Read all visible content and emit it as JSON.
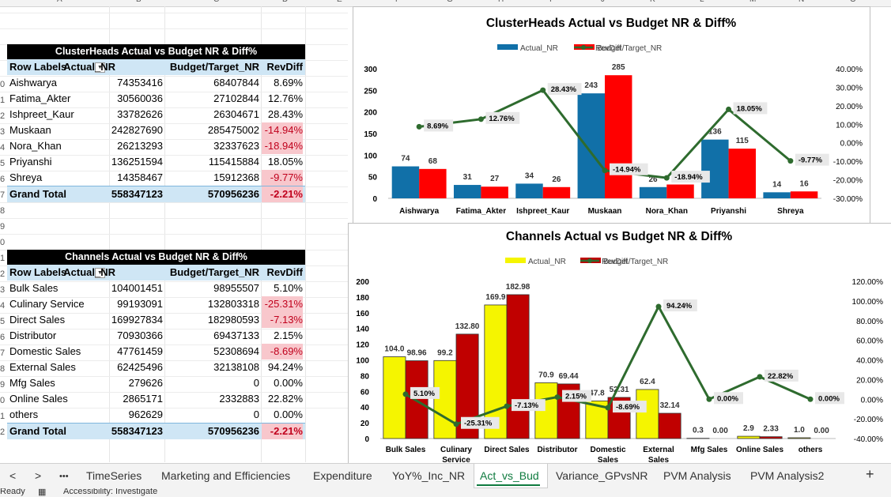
{
  "columns": [
    "A",
    "B",
    "C",
    "D",
    "E",
    "F",
    "G",
    "H",
    "I",
    "J",
    "K",
    "L",
    "M",
    "N",
    "O"
  ],
  "row_numbers": [
    "0",
    "1",
    "2",
    "3",
    "4",
    "5",
    "6",
    "7",
    "8",
    "9",
    "0",
    "1",
    "2",
    "3",
    "4",
    "5",
    "6",
    "7",
    "8",
    "9",
    "0",
    "1",
    "2"
  ],
  "table1": {
    "title": "ClusterHeads Actual vs Budget NR & Diff%",
    "headers": [
      "Row Labels",
      "Actual_NR",
      "Budget/Target_NR",
      "RevDiff"
    ],
    "rows": [
      {
        "label": "Aishwarya",
        "actual": "74353416",
        "budget": "68407844",
        "diff": "8.69%",
        "neg": false
      },
      {
        "label": "Fatima_Akter",
        "actual": "30560036",
        "budget": "27102844",
        "diff": "12.76%",
        "neg": false
      },
      {
        "label": "Ishpreet_Kaur",
        "actual": "33782626",
        "budget": "26304671",
        "diff": "28.43%",
        "neg": false
      },
      {
        "label": "Muskaan",
        "actual": "242827690",
        "budget": "285475002",
        "diff": "-14.94%",
        "neg": true
      },
      {
        "label": "Nora_Khan",
        "actual": "26213293",
        "budget": "32337623",
        "diff": "-18.94%",
        "neg": true
      },
      {
        "label": "Priyanshi",
        "actual": "136251594",
        "budget": "115415884",
        "diff": "18.05%",
        "neg": false
      },
      {
        "label": "Shreya",
        "actual": "14358467",
        "budget": "15912368",
        "diff": "-9.77%",
        "neg": true
      }
    ],
    "total": {
      "label": "Grand Total",
      "actual": "558347123",
      "budget": "570956236",
      "diff": "-2.21%"
    }
  },
  "table2": {
    "title": "Channels Actual vs Budget NR & Diff%",
    "headers": [
      "Row Labels",
      "Actual_NR",
      "Budget/Target_NR",
      "RevDiff"
    ],
    "rows": [
      {
        "label": "Bulk Sales",
        "actual": "104001451",
        "budget": "98955507",
        "diff": "5.10%",
        "neg": false
      },
      {
        "label": "Culinary Service",
        "actual": "99193091",
        "budget": "132803318",
        "diff": "-25.31%",
        "neg": true
      },
      {
        "label": "Direct Sales",
        "actual": "169927834",
        "budget": "182980593",
        "diff": "-7.13%",
        "neg": true
      },
      {
        "label": "Distributor",
        "actual": "70930366",
        "budget": "69437133",
        "diff": "2.15%",
        "neg": false
      },
      {
        "label": "Domestic Sales",
        "actual": "47761459",
        "budget": "52308694",
        "diff": "-8.69%",
        "neg": true
      },
      {
        "label": "External Sales",
        "actual": "62425496",
        "budget": "32138108",
        "diff": "94.24%",
        "neg": false
      },
      {
        "label": "Mfg Sales",
        "actual": "279626",
        "budget": "0",
        "diff": "0.00%",
        "neg": false
      },
      {
        "label": "Online Sales",
        "actual": "2865171",
        "budget": "2332883",
        "diff": "22.82%",
        "neg": false
      },
      {
        "label": "others",
        "actual": "962629",
        "budget": "0",
        "diff": "0.00%",
        "neg": false
      }
    ],
    "total": {
      "label": "Grand Total",
      "actual": "558347123",
      "budget": "570956236",
      "diff": "-2.21%"
    }
  },
  "chart_data": [
    {
      "type": "bar",
      "title": "ClusterHeads Actual vs Budget NR & Diff%",
      "categories": [
        "Aishwarya",
        "Fatima_Akter",
        "Ishpreet_Kaur",
        "Muskaan",
        "Nora_Khan",
        "Priyanshi",
        "Shreya"
      ],
      "series": [
        {
          "name": "Actual_NR",
          "values": [
            74,
            31,
            34,
            243,
            26,
            136,
            14
          ],
          "labels": [
            "74",
            "31",
            "34",
            "243",
            "26",
            "136",
            "14"
          ],
          "color": "#1170a8"
        },
        {
          "name": "Budget/Target_NR",
          "values": [
            68,
            27,
            26,
            285,
            32,
            115,
            16
          ],
          "labels": [
            "68",
            "27",
            "26",
            "285",
            "32",
            "115",
            "16"
          ],
          "color": "#ff0000"
        },
        {
          "name": "RevDiff",
          "type": "line",
          "axis": "secondary",
          "values": [
            8.69,
            12.76,
            28.43,
            -14.94,
            -18.94,
            18.05,
            -9.77
          ],
          "labels": [
            "8.69%",
            "12.76%",
            "28.43%",
            "-14.94%",
            "-18.94%",
            "18.05%",
            "-9.77%"
          ],
          "color": "#2e6b2e"
        }
      ],
      "ylim": [
        0,
        300
      ],
      "yticks": [
        "0",
        "50",
        "100",
        "150",
        "200",
        "250",
        "300"
      ],
      "y2lim": [
        -30,
        40
      ],
      "y2ticks": [
        "-30.00%",
        "-20.00%",
        "-10.00%",
        "0.00%",
        "10.00%",
        "20.00%",
        "30.00%",
        "40.00%"
      ],
      "legend": "top"
    },
    {
      "type": "bar",
      "title": "Channels Actual vs Budget NR & Diff%",
      "categories": [
        "Bulk Sales",
        "Culinary Service",
        "Direct Sales",
        "Distributor",
        "Domestic Sales",
        "External Sales",
        "Mfg Sales",
        "Online Sales",
        "others"
      ],
      "series": [
        {
          "name": "Actual_NR",
          "values": [
            104.0,
            99.2,
            169.9,
            70.9,
            47.8,
            62.4,
            0.3,
            2.9,
            1.0
          ],
          "labels": [
            "104.0",
            "99.2",
            "169.9",
            "70.9",
            "47.8",
            "62.4",
            "0.3",
            "2.9",
            "1.0"
          ],
          "color": "#f5f500"
        },
        {
          "name": "Budget/Target_NR",
          "values": [
            98.96,
            132.8,
            182.98,
            69.44,
            52.31,
            32.14,
            0.0,
            2.33,
            0.0
          ],
          "labels": [
            "98.96",
            "132.80",
            "182.98",
            "69.44",
            "52.31",
            "32.14",
            "0.00",
            "2.33",
            "0.00"
          ],
          "color": "#c00000"
        },
        {
          "name": "RevDiff",
          "type": "line",
          "axis": "secondary",
          "values": [
            5.1,
            -25.31,
            -7.13,
            2.15,
            -8.69,
            94.24,
            0.0,
            22.82,
            0.0
          ],
          "labels": [
            "5.10%",
            "-25.31%",
            "-7.13%",
            "2.15%",
            "-8.69%",
            "94.24%",
            "0.00%",
            "22.82%",
            "0.00%"
          ],
          "color": "#2e6b2e"
        }
      ],
      "ylim": [
        0,
        200
      ],
      "yticks": [
        "0",
        "20",
        "40",
        "60",
        "80",
        "100",
        "120",
        "140",
        "160",
        "180",
        "200"
      ],
      "y2lim": [
        -40,
        120
      ],
      "y2ticks": [
        "-40.00%",
        "-20.00%",
        "0.00%",
        "20.00%",
        "40.00%",
        "60.00%",
        "80.00%",
        "100.00%",
        "120.00%"
      ],
      "legend": "top"
    }
  ],
  "tabs": {
    "nav_prev": "<",
    "nav_next": ">",
    "more": "•••",
    "items": [
      "TimeSeries",
      "Marketing and Efficiencies",
      "Expenditure",
      "YoY%_Inc_NR",
      "Act_vs_Bud",
      "Variance_GPvsNR",
      "PVM Analysis",
      "PVM Analysis2"
    ],
    "active": "Act_vs_Bud",
    "add": "+"
  },
  "status": {
    "ready": "Ready",
    "accessibility": "Accessibility: Investigate"
  }
}
